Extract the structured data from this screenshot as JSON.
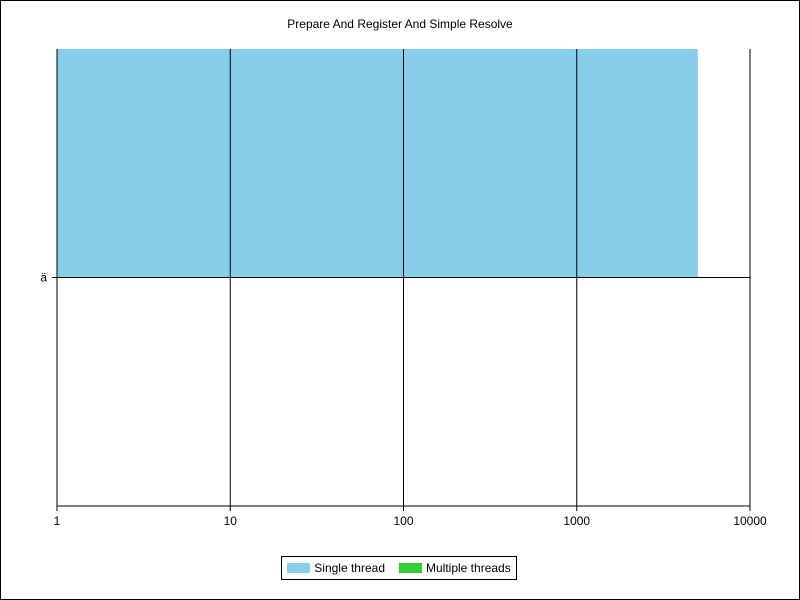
{
  "chart_data": {
    "type": "bar",
    "orientation": "horizontal",
    "title": "Prepare And Register And Simple Resolve",
    "xlabel": "",
    "ylabel": "",
    "x_scale": "log",
    "xlim": [
      1,
      10000
    ],
    "x_ticks": [
      "1",
      "10",
      "100",
      "1000",
      "10000"
    ],
    "categories": [
      "ä"
    ],
    "series": [
      {
        "name": "Single thread",
        "color": "#87ceeb",
        "values": [
          5000
        ]
      },
      {
        "name": "Multiple threads",
        "color": "#32cd32",
        "values": [
          null
        ]
      }
    ],
    "grid": true,
    "legend_position": "bottom"
  }
}
